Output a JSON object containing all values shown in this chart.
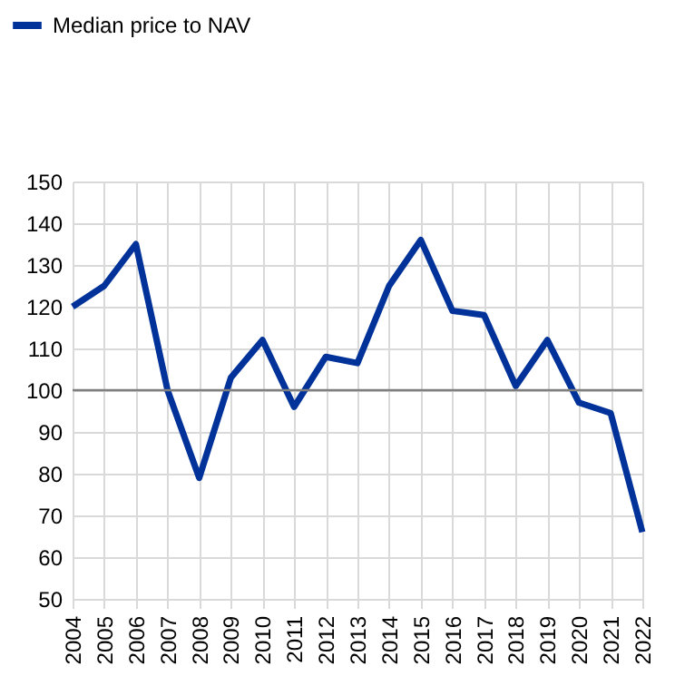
{
  "chart_data": {
    "type": "line",
    "categories": [
      "2004",
      "2005",
      "2006",
      "2007",
      "2008",
      "2009",
      "2010",
      "2011",
      "2012",
      "2013",
      "2014",
      "2015",
      "2016",
      "2017",
      "2018",
      "2019",
      "2020",
      "2021",
      "2022"
    ],
    "series": [
      {
        "name": "Median price to NAV",
        "color": "#003299",
        "values": [
          120,
          125,
          135,
          100,
          79,
          103,
          112,
          96,
          108,
          106.5,
          125,
          136,
          119,
          118,
          101,
          112,
          97,
          94.5,
          66
        ]
      }
    ],
    "ylim": [
      50,
      150
    ],
    "yticks": [
      50,
      60,
      70,
      80,
      90,
      100,
      110,
      120,
      130,
      140,
      150
    ],
    "grid": true,
    "legend": "top left",
    "marker": "none",
    "line_style": "solid",
    "ref_lines": [
      {
        "axis": "y",
        "value": 100,
        "color": "#7f7f7f"
      }
    ]
  }
}
